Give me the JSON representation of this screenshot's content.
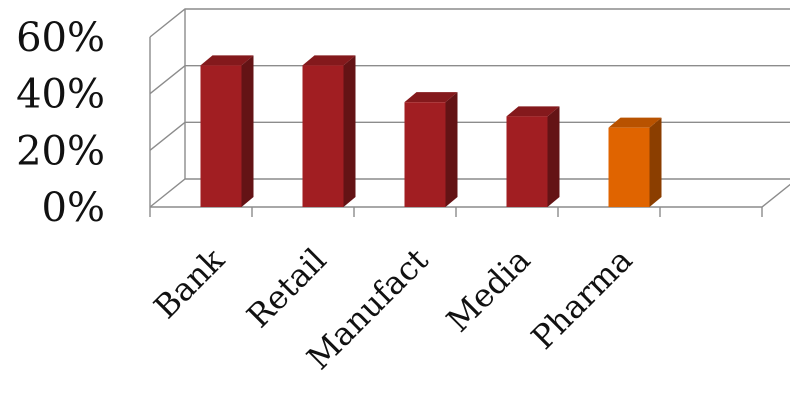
{
  "chart_data": {
    "type": "bar",
    "categories": [
      "Bank",
      "Retail",
      "Manufact",
      "Media",
      "Pharma"
    ],
    "values": [
      50,
      50,
      37,
      32,
      28
    ],
    "ylim": [
      0,
      60
    ],
    "ytick_labels": [
      "0%",
      "20%",
      "40%",
      "60%"
    ],
    "ytick_values": [
      0,
      20,
      40,
      60
    ],
    "grid": true,
    "bar_colors": [
      "#a11e22",
      "#a11e22",
      "#a11e22",
      "#a11e22",
      "#e06400"
    ],
    "highlight_category": "Pharma"
  }
}
